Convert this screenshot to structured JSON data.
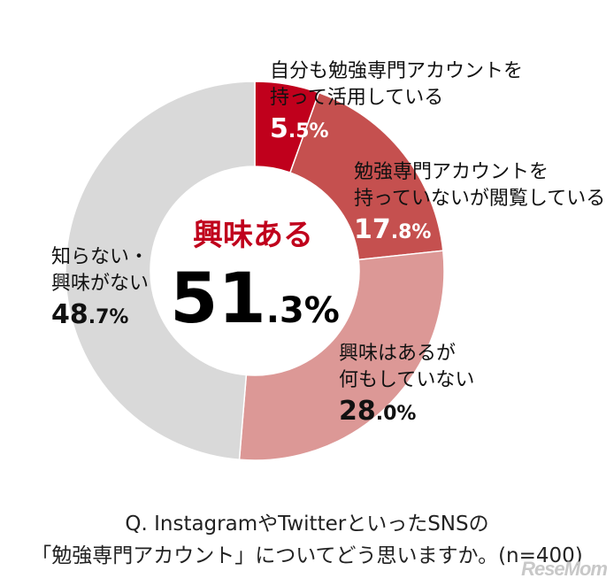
{
  "chart_data": {
    "type": "pie",
    "donut": true,
    "slices": [
      {
        "label_lines": [
          "自分も勉強専門アカウントを",
          "持って活用している"
        ],
        "value": 5.5,
        "int": "5",
        "frac": ".5%",
        "color": "#c0001c",
        "label_color": "#ffffff"
      },
      {
        "label_lines": [
          "勉強専門アカウントを",
          "持っていないが閲覧している"
        ],
        "value": 17.8,
        "int": "17",
        "frac": ".8%",
        "color": "#c5504f",
        "label_color": "#ffffff"
      },
      {
        "label_lines": [
          "興味はあるが",
          "何もしていない"
        ],
        "value": 28.0,
        "int": "28",
        "frac": ".0%",
        "color": "#dc9896",
        "label_color": "#111111"
      },
      {
        "label_lines": [
          "知らない・",
          "興味がない"
        ],
        "value": 48.7,
        "int": "48",
        "frac": ".7%",
        "color": "#d9d9d9",
        "label_color": "#111111"
      }
    ],
    "center": {
      "title": "興味ある",
      "value_int": "51",
      "value_frac": ".3%",
      "title_color": "#c0001c"
    },
    "question_lines": [
      "Q. InstagramやTwitterといったSNSの",
      "「勉強専門アカウント」についてどう思いますか。(n=400)"
    ]
  },
  "watermark": "ReseMom"
}
